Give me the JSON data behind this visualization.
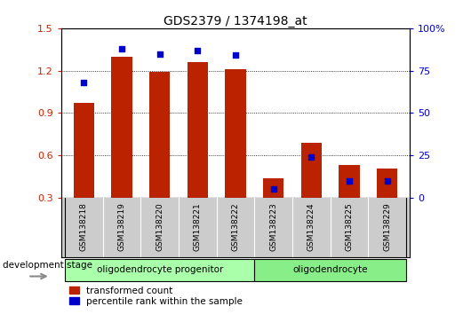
{
  "title": "GDS2379 / 1374198_at",
  "categories": [
    "GSM138218",
    "GSM138219",
    "GSM138220",
    "GSM138221",
    "GSM138222",
    "GSM138223",
    "GSM138224",
    "GSM138225",
    "GSM138229"
  ],
  "red_values": [
    0.97,
    1.3,
    1.19,
    1.26,
    1.21,
    0.44,
    0.69,
    0.53,
    0.51
  ],
  "blue_values": [
    68,
    88,
    85,
    87,
    84,
    5,
    24,
    10,
    10
  ],
  "ylim_left": [
    0.3,
    1.5
  ],
  "ylim_right": [
    0,
    100
  ],
  "yticks_left": [
    0.3,
    0.6,
    0.9,
    1.2,
    1.5
  ],
  "yticks_right": [
    0,
    25,
    50,
    75,
    100
  ],
  "ytick_labels_left": [
    "0.3",
    "0.6",
    "0.9",
    "1.2",
    "1.5"
  ],
  "ytick_labels_right": [
    "0",
    "25",
    "50",
    "75",
    "100%"
  ],
  "bar_color": "#bb2200",
  "dot_color": "#0000cc",
  "bar_width": 0.55,
  "groups": [
    {
      "label": "oligodendrocyte progenitor",
      "start": 0,
      "end": 4,
      "color": "#aaffaa"
    },
    {
      "label": "oligodendrocyte",
      "start": 5,
      "end": 8,
      "color": "#88ee88"
    }
  ],
  "legend_red": "transformed count",
  "legend_blue": "percentile rank within the sample",
  "dev_stage_label": "development stage",
  "left_tick_color": "#cc2200",
  "right_tick_color": "#0000cc",
  "xtick_bg_color": "#cccccc",
  "grid_ticks": [
    0.6,
    0.9,
    1.2
  ]
}
